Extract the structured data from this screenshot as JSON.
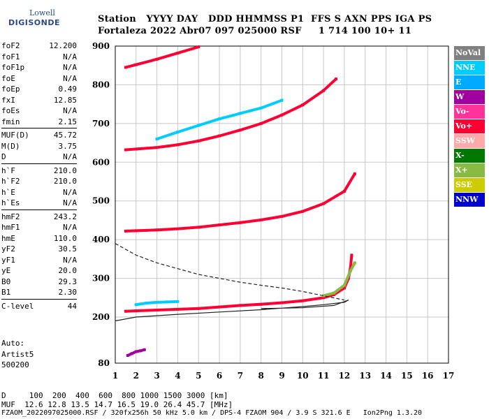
{
  "logo": {
    "line1": "Lowell",
    "line2": "DIGISONDE"
  },
  "header": {
    "line1": "Station   YYYY DAY   DDD HHMMSS P1  FFS S AXN PPS IGA PS",
    "line2": "Fortaleza 2022 Abr07 097 025000 RSF     1 714 100 10+ 11"
  },
  "params": [
    [
      {
        "k": "foF2",
        "v": "12.200"
      },
      {
        "k": "foF1",
        "v": "N/A"
      },
      {
        "k": "foF1p",
        "v": "N/A"
      },
      {
        "k": "foE",
        "v": "N/A"
      },
      {
        "k": "foEp",
        "v": "0.49"
      },
      {
        "k": "fxI",
        "v": "12.85"
      },
      {
        "k": "foEs",
        "v": "N/A"
      },
      {
        "k": "fmin",
        "v": "2.15"
      }
    ],
    [
      {
        "k": "MUF(D)",
        "v": "45.72"
      },
      {
        "k": "M(D)",
        "v": "3.75"
      },
      {
        "k": "D",
        "v": "N/A"
      }
    ],
    [
      {
        "k": "h`F",
        "v": "210.0"
      },
      {
        "k": "h`F2",
        "v": "210.0"
      },
      {
        "k": "h`E",
        "v": "N/A"
      },
      {
        "k": "h`Es",
        "v": "N/A"
      }
    ],
    [
      {
        "k": "hmF2",
        "v": "243.2"
      },
      {
        "k": "hmF1",
        "v": "N/A"
      },
      {
        "k": "hmE",
        "v": "110.0"
      },
      {
        "k": "yF2",
        "v": "30.5"
      },
      {
        "k": "yF1",
        "v": "N/A"
      },
      {
        "k": "yE",
        "v": "20.0"
      },
      {
        "k": "B0",
        "v": "29.3"
      },
      {
        "k": "B1",
        "v": "2.30"
      }
    ],
    [
      {
        "k": "C-level",
        "v": "44"
      }
    ]
  ],
  "auto": {
    "line1": "Auto:",
    "line2": "Artist5",
    "line3": "500200"
  },
  "legend": [
    {
      "label": "NoVal",
      "color": "#808080"
    },
    {
      "label": "NNE",
      "color": "#00ccff"
    },
    {
      "label": "E",
      "color": "#00aaff"
    },
    {
      "label": "W",
      "color": "#a000a0"
    },
    {
      "label": "Vo-",
      "color": "#ff3399"
    },
    {
      "label": "Vo+",
      "color": "#ff0033"
    },
    {
      "label": "SSW",
      "color": "#ffaaaa"
    },
    {
      "label": "X-",
      "color": "#007700"
    },
    {
      "label": "X+",
      "color": "#88bb44"
    },
    {
      "label": "SSE",
      "color": "#cccc00"
    },
    {
      "label": "NNW",
      "color": "#0000cc"
    }
  ],
  "footer": {
    "line1": "D     100  200  400  600  800 1000 1500 3000 [km]",
    "line2": "MUF  12.6 12.8 13.5 14.7 16.5 19.0 26.4 45.7 [MHz]",
    "line3": "FZAOM_2022097025000.RSF / 320fx256h 50 kHz 5.0 km / DPS-4 FZAOM 904 / 3.9 S 321.6 E   Ion2Png 1.3.20"
  },
  "chart_data": {
    "type": "scatter",
    "title": "",
    "xlabel": "",
    "ylabel": "",
    "xlim": [
      1,
      17
    ],
    "ylim": [
      80,
      900
    ],
    "x_ticks": [
      1,
      2,
      3,
      4,
      5,
      6,
      7,
      8,
      9,
      10,
      11,
      12,
      13,
      14,
      15,
      16,
      17
    ],
    "y_ticks": [
      80,
      200,
      300,
      400,
      500,
      600,
      700,
      800,
      900
    ],
    "grid": true,
    "legend_position": "right",
    "series": [
      {
        "color": "#ff0033",
        "points": [
          [
            1.5,
            215
          ],
          [
            2,
            216
          ],
          [
            3,
            218
          ],
          [
            4,
            220
          ],
          [
            5,
            222
          ],
          [
            6,
            226
          ],
          [
            7,
            230
          ],
          [
            8,
            233
          ],
          [
            9,
            237
          ],
          [
            10,
            242
          ],
          [
            11,
            250
          ],
          [
            11.5,
            258
          ],
          [
            12,
            275
          ],
          [
            12.2,
            300
          ],
          [
            12.3,
            330
          ],
          [
            12.35,
            360
          ]
        ]
      },
      {
        "color": "#ff0033",
        "points": [
          [
            1.5,
            422
          ],
          [
            2,
            423
          ],
          [
            3,
            425
          ],
          [
            4,
            428
          ],
          [
            5,
            432
          ],
          [
            6,
            438
          ],
          [
            7,
            444
          ],
          [
            8,
            451
          ],
          [
            9,
            460
          ],
          [
            10,
            473
          ],
          [
            11,
            493
          ],
          [
            12,
            525
          ],
          [
            12.5,
            570
          ]
        ]
      },
      {
        "color": "#ff0033",
        "points": [
          [
            1.5,
            632
          ],
          [
            2,
            634
          ],
          [
            3,
            638
          ],
          [
            4,
            645
          ],
          [
            5,
            655
          ],
          [
            6,
            668
          ],
          [
            7,
            683
          ],
          [
            8,
            700
          ],
          [
            9,
            722
          ],
          [
            10,
            748
          ],
          [
            11,
            785
          ],
          [
            11.6,
            815
          ]
        ]
      },
      {
        "color": "#ff0033",
        "points": [
          [
            1.5,
            845
          ],
          [
            2,
            852
          ],
          [
            3,
            866
          ],
          [
            4,
            882
          ],
          [
            5,
            898
          ]
        ]
      },
      {
        "color": "#00ccff",
        "points": [
          [
            2,
            232
          ],
          [
            2.5,
            236
          ],
          [
            3,
            238
          ],
          [
            3.5,
            239
          ],
          [
            4,
            240
          ]
        ]
      },
      {
        "color": "#00ccff",
        "points": [
          [
            3,
            660
          ],
          [
            4,
            678
          ],
          [
            5,
            695
          ],
          [
            6,
            712
          ],
          [
            7,
            726
          ],
          [
            8,
            740
          ],
          [
            9,
            760
          ]
        ]
      },
      {
        "color": "#88bb44",
        "points": [
          [
            11,
            255
          ],
          [
            11.5,
            262
          ],
          [
            12,
            282
          ],
          [
            12.3,
            320
          ],
          [
            12.5,
            340
          ]
        ]
      },
      {
        "color": "#a000a0",
        "points": [
          [
            1.6,
            100
          ],
          [
            1.8,
            105
          ],
          [
            2,
            110
          ],
          [
            2.2,
            112
          ],
          [
            2.4,
            115
          ]
        ]
      }
    ],
    "lines": [
      {
        "style": "solid",
        "points": [
          [
            1,
            190
          ],
          [
            2,
            200
          ],
          [
            4,
            207
          ],
          [
            6,
            213
          ],
          [
            8,
            219
          ],
          [
            10,
            227
          ],
          [
            11,
            232
          ],
          [
            12,
            238
          ],
          [
            12.2,
            244
          ],
          [
            11.5,
            230
          ],
          [
            10,
            224
          ],
          [
            8,
            222
          ]
        ]
      },
      {
        "style": "dashed",
        "points": [
          [
            1,
            390
          ],
          [
            2,
            360
          ],
          [
            3,
            340
          ],
          [
            4,
            325
          ],
          [
            5,
            310
          ],
          [
            6,
            300
          ],
          [
            7,
            290
          ],
          [
            8,
            282
          ],
          [
            9,
            275
          ],
          [
            10,
            266
          ],
          [
            11,
            255
          ],
          [
            12,
            244
          ]
        ]
      }
    ]
  }
}
